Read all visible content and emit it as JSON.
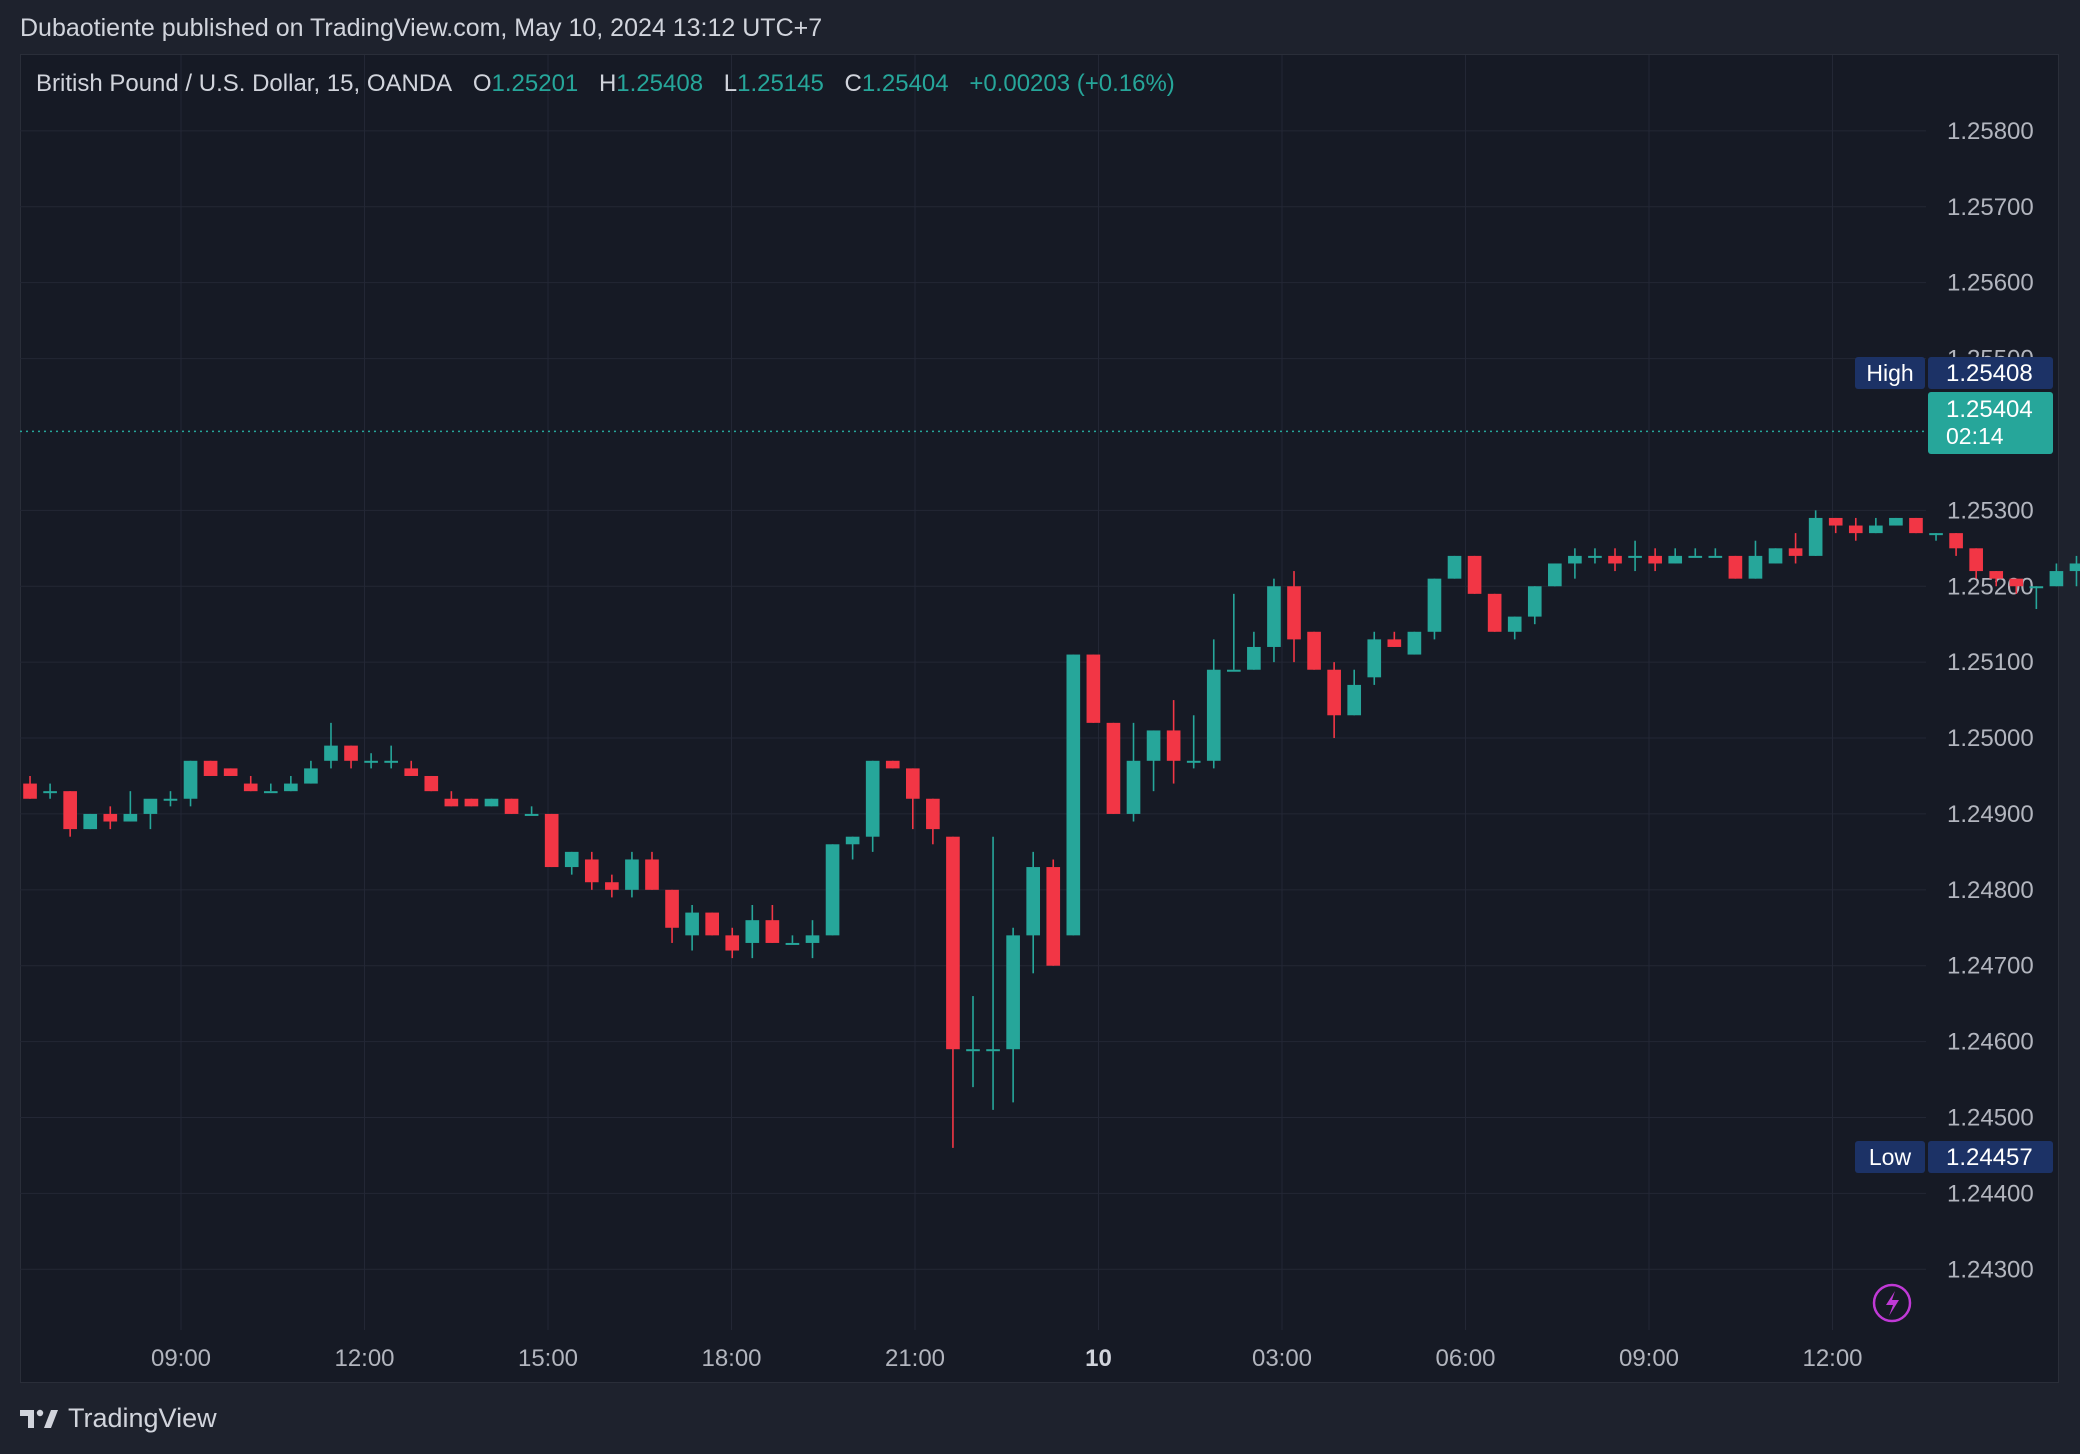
{
  "header": {
    "published_line": "Dubaotiente published on TradingView.com, May 10, 2024 13:12 UTC+7"
  },
  "legend": {
    "symbol": "British Pound / U.S. Dollar, 15, OANDA",
    "o_label": "O",
    "o_value": "1.25201",
    "h_label": "H",
    "h_value": "1.25408",
    "l_label": "L",
    "l_value": "1.25145",
    "c_label": "C",
    "c_value": "1.25404",
    "change": "+0.00203 (+0.16%)"
  },
  "price_axis": {
    "ticks": [
      "1.25800",
      "1.25700",
      "1.25600",
      "1.25500",
      "1.25300",
      "1.25200",
      "1.25100",
      "1.25000",
      "1.24900",
      "1.24800",
      "1.24700",
      "1.24600",
      "1.24500",
      "1.24400",
      "1.24300"
    ],
    "high_label": "High",
    "high_value": "1.25408",
    "low_label": "Low",
    "low_value": "1.24457",
    "last_price": "1.25404",
    "countdown": "02:14"
  },
  "time_axis": {
    "ticks": [
      "09:00",
      "12:00",
      "15:00",
      "18:00",
      "21:00",
      "10",
      "03:00",
      "06:00",
      "09:00",
      "12:00"
    ]
  },
  "footer": {
    "brand": "TradingView"
  },
  "colors": {
    "up": "#26a69a",
    "down": "#f23645",
    "background": "#161a25",
    "grid": "#232735"
  },
  "chart_data": {
    "type": "candlestick",
    "ylim": [
      1.2422,
      1.259
    ],
    "intervals_shown": 95,
    "candles": [
      {
        "o": 1.2494,
        "h": 1.2495,
        "l": 1.2492,
        "c": 1.2492
      },
      {
        "o": 1.2493,
        "h": 1.2494,
        "l": 1.2492,
        "c": 1.2493
      },
      {
        "o": 1.2493,
        "h": 1.2493,
        "l": 1.2487,
        "c": 1.2488
      },
      {
        "o": 1.2488,
        "h": 1.249,
        "l": 1.2488,
        "c": 1.249
      },
      {
        "o": 1.249,
        "h": 1.2491,
        "l": 1.2488,
        "c": 1.2489
      },
      {
        "o": 1.2489,
        "h": 1.2493,
        "l": 1.2489,
        "c": 1.249
      },
      {
        "o": 1.249,
        "h": 1.2491,
        "l": 1.2488,
        "c": 1.2492
      },
      {
        "o": 1.2492,
        "h": 1.2493,
        "l": 1.2491,
        "c": 1.2492
      },
      {
        "o": 1.2492,
        "h": 1.2497,
        "l": 1.2491,
        "c": 1.2497
      },
      {
        "o": 1.2497,
        "h": 1.2497,
        "l": 1.2495,
        "c": 1.2495
      },
      {
        "o": 1.2496,
        "h": 1.2496,
        "l": 1.2495,
        "c": 1.2495
      },
      {
        "o": 1.2494,
        "h": 1.2495,
        "l": 1.2493,
        "c": 1.2493
      },
      {
        "o": 1.2493,
        "h": 1.2494,
        "l": 1.2493,
        "c": 1.2493
      },
      {
        "o": 1.2493,
        "h": 1.2495,
        "l": 1.2493,
        "c": 1.2494
      },
      {
        "o": 1.2494,
        "h": 1.2497,
        "l": 1.2494,
        "c": 1.2496
      },
      {
        "o": 1.2497,
        "h": 1.2502,
        "l": 1.2496,
        "c": 1.2499
      },
      {
        "o": 1.2499,
        "h": 1.2499,
        "l": 1.2496,
        "c": 1.2497
      },
      {
        "o": 1.2497,
        "h": 1.2498,
        "l": 1.2496,
        "c": 1.2497
      },
      {
        "o": 1.2497,
        "h": 1.2499,
        "l": 1.2496,
        "c": 1.2497
      },
      {
        "o": 1.2496,
        "h": 1.2497,
        "l": 1.2495,
        "c": 1.2495
      },
      {
        "o": 1.2495,
        "h": 1.2495,
        "l": 1.2493,
        "c": 1.2493
      },
      {
        "o": 1.2492,
        "h": 1.2493,
        "l": 1.2491,
        "c": 1.2491
      },
      {
        "o": 1.2492,
        "h": 1.2492,
        "l": 1.2491,
        "c": 1.2491
      },
      {
        "o": 1.2491,
        "h": 1.2492,
        "l": 1.2491,
        "c": 1.2492
      },
      {
        "o": 1.2492,
        "h": 1.2492,
        "l": 1.249,
        "c": 1.249
      },
      {
        "o": 1.249,
        "h": 1.2491,
        "l": 1.249,
        "c": 1.249
      },
      {
        "o": 1.249,
        "h": 1.249,
        "l": 1.2483,
        "c": 1.2483
      },
      {
        "o": 1.2483,
        "h": 1.2485,
        "l": 1.2482,
        "c": 1.2485
      },
      {
        "o": 1.2484,
        "h": 1.2485,
        "l": 1.248,
        "c": 1.2481
      },
      {
        "o": 1.2481,
        "h": 1.2482,
        "l": 1.2479,
        "c": 1.248
      },
      {
        "o": 1.248,
        "h": 1.2485,
        "l": 1.2479,
        "c": 1.2484
      },
      {
        "o": 1.2484,
        "h": 1.2485,
        "l": 1.248,
        "c": 1.248
      },
      {
        "o": 1.248,
        "h": 1.248,
        "l": 1.2473,
        "c": 1.2475
      },
      {
        "o": 1.2474,
        "h": 1.2478,
        "l": 1.2472,
        "c": 1.2477
      },
      {
        "o": 1.2477,
        "h": 1.2477,
        "l": 1.2474,
        "c": 1.2474
      },
      {
        "o": 1.2474,
        "h": 1.2475,
        "l": 1.2471,
        "c": 1.2472
      },
      {
        "o": 1.2473,
        "h": 1.2478,
        "l": 1.2471,
        "c": 1.2476
      },
      {
        "o": 1.2476,
        "h": 1.2478,
        "l": 1.2473,
        "c": 1.2473
      },
      {
        "o": 1.2473,
        "h": 1.2474,
        "l": 1.2473,
        "c": 1.2473
      },
      {
        "o": 1.2473,
        "h": 1.2476,
        "l": 1.2471,
        "c": 1.2474
      },
      {
        "o": 1.2474,
        "h": 1.2486,
        "l": 1.2474,
        "c": 1.2486
      },
      {
        "o": 1.2486,
        "h": 1.2487,
        "l": 1.2484,
        "c": 1.2487
      },
      {
        "o": 1.2487,
        "h": 1.2497,
        "l": 1.2485,
        "c": 1.2497
      },
      {
        "o": 1.2497,
        "h": 1.2497,
        "l": 1.2496,
        "c": 1.2496
      },
      {
        "o": 1.2496,
        "h": 1.2496,
        "l": 1.2488,
        "c": 1.2492
      },
      {
        "o": 1.2492,
        "h": 1.2492,
        "l": 1.2486,
        "c": 1.2488
      },
      {
        "o": 1.2487,
        "h": 1.2487,
        "l": 1.2446,
        "c": 1.2459
      },
      {
        "o": 1.2459,
        "h": 1.2466,
        "l": 1.2454,
        "c": 1.2459
      },
      {
        "o": 1.2459,
        "h": 1.2487,
        "l": 1.2451,
        "c": 1.2459
      },
      {
        "o": 1.2459,
        "h": 1.2475,
        "l": 1.2452,
        "c": 1.2474
      },
      {
        "o": 1.2474,
        "h": 1.2485,
        "l": 1.2469,
        "c": 1.2483
      },
      {
        "o": 1.2483,
        "h": 1.2484,
        "l": 1.247,
        "c": 1.247
      },
      {
        "o": 1.2474,
        "h": 1.2511,
        "l": 1.2474,
        "c": 1.2511
      },
      {
        "o": 1.2511,
        "h": 1.2511,
        "l": 1.2502,
        "c": 1.2502
      },
      {
        "o": 1.2502,
        "h": 1.2502,
        "l": 1.249,
        "c": 1.249
      },
      {
        "o": 1.249,
        "h": 1.2502,
        "l": 1.2489,
        "c": 1.2497
      },
      {
        "o": 1.2497,
        "h": 1.2501,
        "l": 1.2493,
        "c": 1.2501
      },
      {
        "o": 1.2501,
        "h": 1.2505,
        "l": 1.2494,
        "c": 1.2497
      },
      {
        "o": 1.2497,
        "h": 1.2503,
        "l": 1.2496,
        "c": 1.2497
      },
      {
        "o": 1.2497,
        "h": 1.2513,
        "l": 1.2496,
        "c": 1.2509
      },
      {
        "o": 1.2509,
        "h": 1.2519,
        "l": 1.2509,
        "c": 1.2509
      },
      {
        "o": 1.2509,
        "h": 1.2514,
        "l": 1.2509,
        "c": 1.2512
      },
      {
        "o": 1.2512,
        "h": 1.2521,
        "l": 1.251,
        "c": 1.252
      },
      {
        "o": 1.252,
        "h": 1.2522,
        "l": 1.251,
        "c": 1.2513
      },
      {
        "o": 1.2514,
        "h": 1.2514,
        "l": 1.2509,
        "c": 1.2509
      },
      {
        "o": 1.2509,
        "h": 1.251,
        "l": 1.25,
        "c": 1.2503
      },
      {
        "o": 1.2503,
        "h": 1.2509,
        "l": 1.2503,
        "c": 1.2507
      },
      {
        "o": 1.2508,
        "h": 1.2514,
        "l": 1.2507,
        "c": 1.2513
      },
      {
        "o": 1.2513,
        "h": 1.2514,
        "l": 1.2512,
        "c": 1.2512
      },
      {
        "o": 1.2511,
        "h": 1.2514,
        "l": 1.2511,
        "c": 1.2514
      },
      {
        "o": 1.2514,
        "h": 1.2521,
        "l": 1.2513,
        "c": 1.2521
      },
      {
        "o": 1.2521,
        "h": 1.2524,
        "l": 1.2521,
        "c": 1.2524
      },
      {
        "o": 1.2524,
        "h": 1.2524,
        "l": 1.2519,
        "c": 1.2519
      },
      {
        "o": 1.2519,
        "h": 1.2519,
        "l": 1.2514,
        "c": 1.2514
      },
      {
        "o": 1.2514,
        "h": 1.2516,
        "l": 1.2513,
        "c": 1.2516
      },
      {
        "o": 1.2516,
        "h": 1.252,
        "l": 1.2515,
        "c": 1.252
      },
      {
        "o": 1.252,
        "h": 1.2523,
        "l": 1.252,
        "c": 1.2523
      },
      {
        "o": 1.2523,
        "h": 1.2525,
        "l": 1.2521,
        "c": 1.2524
      },
      {
        "o": 1.2524,
        "h": 1.2525,
        "l": 1.2523,
        "c": 1.2524
      },
      {
        "o": 1.2524,
        "h": 1.2525,
        "l": 1.2522,
        "c": 1.2523
      },
      {
        "o": 1.2524,
        "h": 1.2526,
        "l": 1.2522,
        "c": 1.2524
      },
      {
        "o": 1.2524,
        "h": 1.2525,
        "l": 1.2522,
        "c": 1.2523
      },
      {
        "o": 1.2523,
        "h": 1.2525,
        "l": 1.2523,
        "c": 1.2524
      },
      {
        "o": 1.2524,
        "h": 1.2525,
        "l": 1.2524,
        "c": 1.2524
      },
      {
        "o": 1.2524,
        "h": 1.2525,
        "l": 1.2524,
        "c": 1.2524
      },
      {
        "o": 1.2524,
        "h": 1.2524,
        "l": 1.2521,
        "c": 1.2521
      },
      {
        "o": 1.2521,
        "h": 1.2526,
        "l": 1.2521,
        "c": 1.2524
      },
      {
        "o": 1.2523,
        "h": 1.2525,
        "l": 1.2523,
        "c": 1.2525
      },
      {
        "o": 1.2525,
        "h": 1.2527,
        "l": 1.2523,
        "c": 1.2524
      },
      {
        "o": 1.2524,
        "h": 1.253,
        "l": 1.2524,
        "c": 1.2529
      },
      {
        "o": 1.2529,
        "h": 1.2529,
        "l": 1.2527,
        "c": 1.2528
      },
      {
        "o": 1.2528,
        "h": 1.2529,
        "l": 1.2526,
        "c": 1.2527
      },
      {
        "o": 1.2527,
        "h": 1.2529,
        "l": 1.2527,
        "c": 1.2528
      },
      {
        "o": 1.2528,
        "h": 1.2529,
        "l": 1.2528,
        "c": 1.2529
      },
      {
        "o": 1.2529,
        "h": 1.2529,
        "l": 1.2527,
        "c": 1.2527
      },
      {
        "o": 1.2527,
        "h": 1.2527,
        "l": 1.2526,
        "c": 1.2527
      },
      {
        "o": 1.2527,
        "h": 1.2527,
        "l": 1.2524,
        "c": 1.2525
      },
      {
        "o": 1.2525,
        "h": 1.2525,
        "l": 1.2521,
        "c": 1.2522
      },
      {
        "o": 1.2522,
        "h": 1.2522,
        "l": 1.252,
        "c": 1.2521
      },
      {
        "o": 1.2521,
        "h": 1.2521,
        "l": 1.2519,
        "c": 1.252
      },
      {
        "o": 1.252,
        "h": 1.252,
        "l": 1.2517,
        "c": 1.252
      },
      {
        "o": 1.252,
        "h": 1.2523,
        "l": 1.252,
        "c": 1.2522
      },
      {
        "o": 1.2522,
        "h": 1.2524,
        "l": 1.252,
        "c": 1.2523
      },
      {
        "o": 1.2523,
        "h": 1.2523,
        "l": 1.2519,
        "c": 1.2519
      },
      {
        "o": 1.2519,
        "h": 1.2519,
        "l": 1.2516,
        "c": 1.2517
      },
      {
        "o": 1.2517,
        "h": 1.2517,
        "l": 1.2514,
        "c": 1.2515
      },
      {
        "o": 1.2515,
        "h": 1.2515,
        "l": 1.2512,
        "c": 1.2513
      },
      {
        "o": 1.2513,
        "h": 1.2516,
        "l": 1.2513,
        "c": 1.2515
      },
      {
        "o": 1.2515,
        "h": 1.2518,
        "l": 1.2514,
        "c": 1.2516
      },
      {
        "o": 1.2516,
        "h": 1.2517,
        "l": 1.2515,
        "c": 1.2516
      },
      {
        "o": 1.2516,
        "h": 1.2517,
        "l": 1.2515,
        "c": 1.2516
      },
      {
        "o": 1.2516,
        "h": 1.2517,
        "l": 1.2515,
        "c": 1.2516
      },
      {
        "o": 1.2516,
        "h": 1.2517,
        "l": 1.2516,
        "c": 1.2516
      },
      {
        "o": 1.2516,
        "h": 1.2517,
        "l": 1.2516,
        "c": 1.2517
      },
      {
        "o": 1.2517,
        "h": 1.2517,
        "l": 1.2516,
        "c": 1.2516
      },
      {
        "o": 1.2516,
        "h": 1.2517,
        "l": 1.2516,
        "c": 1.2516
      },
      {
        "o": 1.2516,
        "h": 1.2516,
        "l": 1.2516,
        "c": 1.2516
      },
      {
        "o": 1.2516,
        "h": 1.2517,
        "l": 1.2515,
        "c": 1.2515
      },
      {
        "o": 1.2515,
        "h": 1.2517,
        "l": 1.2515,
        "c": 1.2517
      },
      {
        "o": 1.2517,
        "h": 1.2519,
        "l": 1.2516,
        "c": 1.2518
      },
      {
        "o": 1.2518,
        "h": 1.252,
        "l": 1.2516,
        "c": 1.2517
      },
      {
        "o": 1.2516,
        "h": 1.2521,
        "l": 1.2515,
        "c": 1.252
      },
      {
        "o": 1.252,
        "h": 1.25408,
        "l": 1.25145,
        "c": 1.25404
      }
    ]
  }
}
